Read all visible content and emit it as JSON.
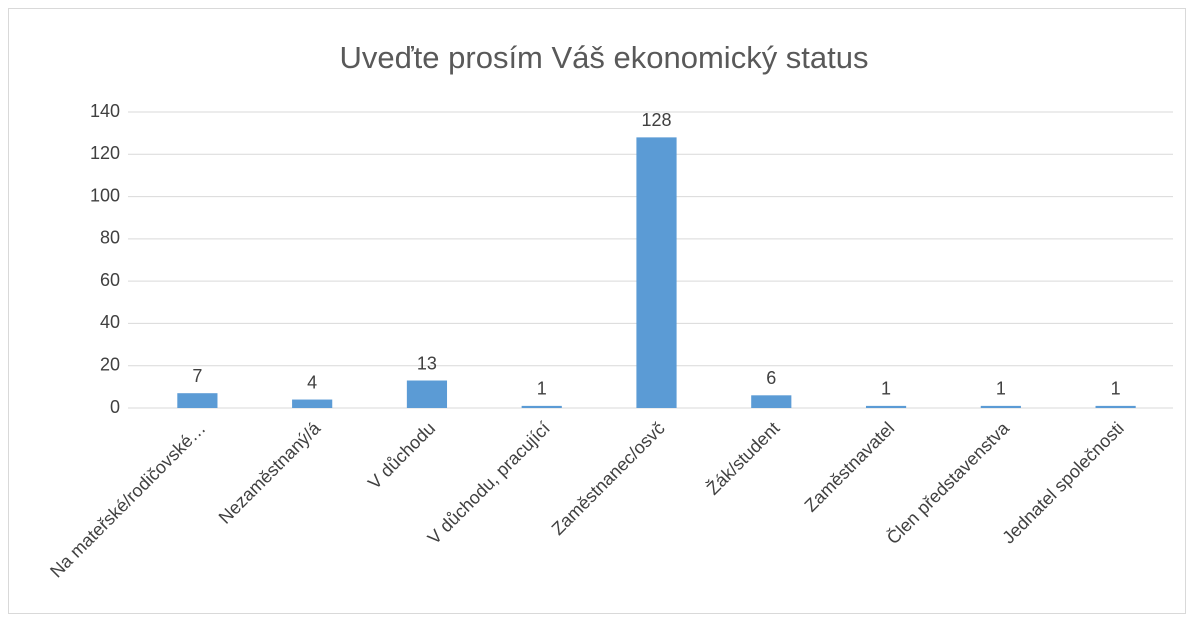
{
  "chart_data": {
    "type": "bar",
    "title": "Uveďte prosím Váš ekonomický status",
    "categories": [
      "Na mateřské/rodičovské…",
      "Nezaměstnaný/á",
      "V důchodu",
      "V důchodu, pracující",
      "Zaměstnanec/osvč",
      "Žák/student",
      "Zaměstnavatel",
      "Člen představenstva",
      "Jednatel společnosti"
    ],
    "values": [
      7,
      4,
      13,
      1,
      128,
      6,
      1,
      1,
      1
    ],
    "color": "#5b9bd5",
    "ylim": [
      0,
      140
    ],
    "yticks": [
      0,
      20,
      40,
      60,
      80,
      100,
      120,
      140
    ],
    "grid": true
  }
}
